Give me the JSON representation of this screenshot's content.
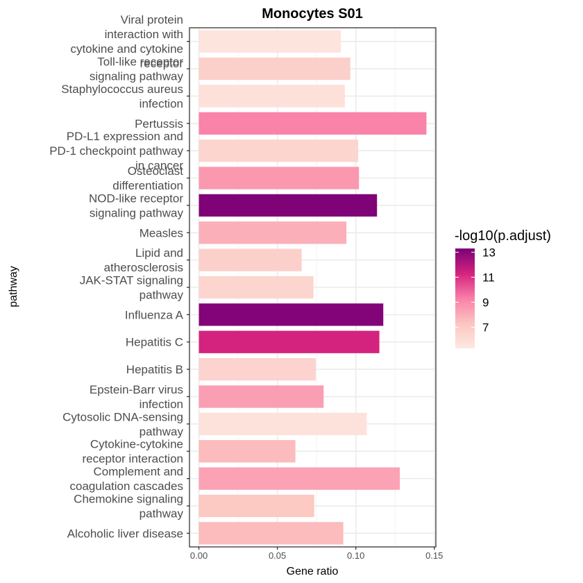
{
  "chart_data": {
    "type": "bar",
    "orientation": "horizontal",
    "title": "Monocytes S01",
    "xlabel": "Gene ratio",
    "ylabel": "pathway",
    "xlim": [
      -0.006,
      0.151
    ],
    "xticks": [
      0,
      0.05,
      0.1,
      0.15
    ],
    "xtick_labels": [
      "0.00",
      "0.05",
      "0.10",
      "0.15"
    ],
    "grid": true,
    "categories": [
      "Viral protein interaction with cytokine and cytokine receptor",
      "Toll-like receptor signaling pathway",
      "Staphylococcus aureus infection",
      "Pertussis",
      "PD-L1 expression and PD-1 checkpoint pathway in cancer",
      "Osteoclast differentiation",
      "NOD-like receptor signaling pathway",
      "Measles",
      "Lipid and atherosclerosis",
      "JAK-STAT signaling pathway",
      "Influenza A",
      "Hepatitis C",
      "Hepatitis B",
      "Epstein-Barr virus infection",
      "Cytosolic DNA-sensing pathway",
      "Cytokine-cytokine receptor interaction",
      "Complement and coagulation cascades",
      "Chemokine signaling pathway",
      "Alcoholic liver disease"
    ],
    "category_label_lines": [
      [
        "Viral protein",
        "interaction with",
        "cytokine and cytokine",
        "receptor"
      ],
      [
        "Toll-like receptor",
        "signaling pathway"
      ],
      [
        "Staphylococcus aureus",
        "infection"
      ],
      [
        "Pertussis"
      ],
      [
        "PD-L1 expression and",
        "PD-1 checkpoint pathway",
        "in cancer"
      ],
      [
        "Osteoclast",
        "differentiation"
      ],
      [
        "NOD-like receptor",
        "signaling pathway"
      ],
      [
        "Measles"
      ],
      [
        "Lipid and",
        "atherosclerosis"
      ],
      [
        "JAK-STAT signaling",
        "pathway"
      ],
      [
        "Influenza A"
      ],
      [
        "Hepatitis C"
      ],
      [
        "Hepatitis B"
      ],
      [
        "Epstein-Barr virus",
        "infection"
      ],
      [
        "Cytosolic DNA-sensing",
        "pathway"
      ],
      [
        "Cytokine-cytokine",
        "receptor interaction"
      ],
      [
        "Complement and",
        "coagulation cascades"
      ],
      [
        "Chemokine signaling",
        "pathway"
      ],
      [
        "Alcoholic liver disease"
      ]
    ],
    "values": [
      0.0905,
      0.0965,
      0.093,
      0.145,
      0.1015,
      0.102,
      0.1135,
      0.094,
      0.0655,
      0.073,
      0.1175,
      0.115,
      0.0745,
      0.0795,
      0.107,
      0.0615,
      0.128,
      0.0735,
      0.092
    ],
    "color_values": [
      5.6,
      6.7,
      5.8,
      9.2,
      6.4,
      8.6,
      13.2,
      7.9,
      6.7,
      6.4,
      13.1,
      11.3,
      6.5,
      8.4,
      5.7,
      7.6,
      8.3,
      7.1,
      7.6
    ],
    "legend": {
      "title": "-log10(p.adjust)",
      "position": "right",
      "ticks": [
        7,
        9,
        11,
        13
      ],
      "tick_labels": [
        "7",
        "9",
        "11",
        "13"
      ],
      "range": [
        5.3,
        13.3
      ],
      "color_low": "#fde9e2",
      "color_mid": "#f97fa8",
      "color_high": "#7a0177"
    }
  }
}
